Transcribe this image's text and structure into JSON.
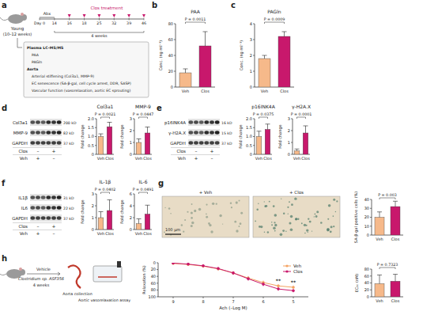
{
  "panel_letters": [
    "a",
    "b",
    "c",
    "d",
    "e",
    "f",
    "g",
    "h"
  ],
  "schematic_a": {
    "mouse": [
      "Young",
      "(10–12 weeks)"
    ],
    "abx": "Abx",
    "treatment": "Clos treatment",
    "days": [
      "Day 0",
      "14",
      "16",
      "18",
      "25",
      "32",
      "39",
      "46"
    ],
    "duration": "4 weeks",
    "readouts": [
      "Plasma LC–MS/MS",
      "PAA",
      "PAGln",
      "Aorta",
      "Arterial stiffening (Col3a1, MMP-9)",
      "EC senescence (SA-β-gal, cell cycle arrest, DDR, SASP)",
      "Vascular function (vasorelaxation, aortic EC sprouting)"
    ]
  },
  "blots": [
    {
      "rows": [
        {
          "label": "Col3a1",
          "kda": "200 kD"
        },
        {
          "label": "MMP-9",
          "kda": "82 kD"
        },
        {
          "label": "GAPDH",
          "kda": "37 kD"
        }
      ],
      "lanes": [
        {
          "label": "Clos",
          "signs": [
            "–",
            "+"
          ]
        },
        {
          "label": "Veh",
          "signs": [
            "+",
            "–"
          ]
        }
      ]
    },
    {
      "rows": [
        {
          "label": "p16INK4A",
          "kda": "16 kD"
        },
        {
          "label": "γ-H2A.X",
          "kda": "15 kD"
        },
        {
          "label": "GAPDH",
          "kda": "37 kD"
        }
      ],
      "lanes": [
        {
          "label": "Clos",
          "signs": [
            "–",
            "+"
          ]
        },
        {
          "label": "Veh",
          "signs": [
            "+",
            "–"
          ]
        }
      ]
    },
    {
      "rows": [
        {
          "label": "IL1β",
          "kda": "31 kD"
        },
        {
          "label": "IL6",
          "kda": "22 kD"
        },
        {
          "label": "GAPDH",
          "kda": "37 kD"
        }
      ],
      "lanes": [
        {
          "label": "Clos",
          "signs": [
            "–",
            "+"
          ]
        },
        {
          "label": "Veh",
          "signs": [
            "+",
            "–"
          ]
        }
      ]
    }
  ],
  "images_g": {
    "labels": [
      "+ Veh",
      "+ Clos"
    ],
    "scale": "100 μm"
  },
  "schematic_h": {
    "groups": [
      "Vehicle",
      "Clostridium sp. ASF356"
    ],
    "duration": "4 weeks",
    "steps": [
      "Aorta collection",
      "Aortic vasorelaxation assay"
    ]
  },
  "chart_data": [
    {
      "type": "bar",
      "title": "PAA",
      "y_label": "Conc. (ng ml⁻¹)",
      "categories": [
        "Veh",
        "Clos"
      ],
      "values": [
        18,
        52
      ],
      "errors": [
        5,
        18
      ],
      "colors": [
        "#f6b98a",
        "#c8186c"
      ],
      "ylim": [
        0,
        80
      ],
      "yticks": [
        0,
        20,
        40,
        60,
        80
      ],
      "annotation": "P = 0.0011"
    },
    {
      "type": "bar",
      "title": "PAGln",
      "y_label": "Conc. (ng ml⁻¹)",
      "categories": [
        "Veh",
        "Clos"
      ],
      "values": [
        1.8,
        3.2
      ],
      "errors": [
        0.2,
        0.3
      ],
      "colors": [
        "#f6b98a",
        "#c8186c"
      ],
      "ylim": [
        0,
        4
      ],
      "yticks": [
        0,
        1,
        2,
        3,
        4
      ],
      "annotation": "P = 0.0009"
    },
    {
      "type": "bar",
      "title": "Col3a1",
      "y_label": "Fold change",
      "categories": [
        "Veh",
        "Clos"
      ],
      "values": [
        1.0,
        1.55
      ],
      "errors": [
        0.15,
        0.25
      ],
      "colors": [
        "#f6b98a",
        "#c8186c"
      ],
      "ylim": [
        0,
        2
      ],
      "yticks": [
        0,
        0.5,
        {
          "value": 1,
          "label": "1.0"
        },
        1.5,
        {
          "value": 2,
          "label": "2.0"
        }
      ],
      "annotation": "P = 0.0021"
    },
    {
      "type": "bar",
      "title": "MMP-9",
      "y_label": "Fold change",
      "categories": [
        "Veh",
        "Clos"
      ],
      "values": [
        1.0,
        1.8
      ],
      "errors": [
        0.3,
        0.5
      ],
      "colors": [
        "#f6b98a",
        "#c8186c"
      ],
      "ylim": [
        0,
        3
      ],
      "yticks": [
        0,
        1,
        2,
        3
      ],
      "annotation": "P = 0.0447"
    },
    {
      "type": "bar",
      "title": "p16INK4A",
      "y_label": "Fold change",
      "categories": [
        "Veh",
        "Clos"
      ],
      "values": [
        1.0,
        1.4
      ],
      "errors": [
        0.3,
        0.3
      ],
      "colors": [
        "#f6b98a",
        "#c8186c"
      ],
      "ylim": [
        0,
        2
      ],
      "yticks": [
        0,
        0.5,
        {
          "value": 1,
          "label": "1.0"
        },
        1.5,
        {
          "value": 2,
          "label": "2.0"
        }
      ],
      "annotation": "P = 0.0375"
    },
    {
      "type": "bar",
      "title": "γ-H2A.X",
      "y_label": "Fold change",
      "categories": [
        "Veh",
        "Clos"
      ],
      "values": [
        0.3,
        1.8
      ],
      "errors": [
        0.15,
        0.6
      ],
      "colors": [
        "#f6b98a",
        "#c8186c"
      ],
      "ylim": [
        0,
        3
      ],
      "yticks": [
        0,
        1,
        2,
        3
      ],
      "annotation": "P = 0.0001"
    },
    {
      "type": "bar",
      "title": "IL-1β",
      "y_label": "Fold change",
      "categories": [
        "Veh",
        "Clos"
      ],
      "values": [
        1.0,
        1.6
      ],
      "errors": [
        0.5,
        0.9
      ],
      "colors": [
        "#f6b98a",
        "#c8186c"
      ],
      "ylim": [
        0,
        3
      ],
      "yticks": [
        0,
        1,
        2,
        3
      ],
      "annotation": "P = 0.0402"
    },
    {
      "type": "bar",
      "title": "IL-6",
      "y_label": "Fold change",
      "categories": [
        "Veh",
        "Clos"
      ],
      "values": [
        1.0,
        2.6
      ],
      "errors": [
        0.8,
        1.5
      ],
      "colors": [
        "#f6b98a",
        "#c8186c"
      ],
      "ylim": [
        0,
        6
      ],
      "yticks": [
        0,
        2,
        4,
        6
      ],
      "annotation": "P = 0.0491"
    },
    {
      "type": "bar",
      "y_label": "SA-β-gal positive cells (%)",
      "categories": [
        "Veh",
        "Clos"
      ],
      "values": [
        20,
        32
      ],
      "errors": [
        6,
        6
      ],
      "colors": [
        "#f6b98a",
        "#c8186c"
      ],
      "ylim": [
        0,
        40
      ],
      "yticks": [
        0,
        10,
        20,
        30,
        40
      ],
      "annotation": "P = 0.003"
    },
    {
      "type": "line",
      "x_label": "Ach (–Log M)",
      "y_label": "Relaxation (%)",
      "x": [
        9,
        8.5,
        8,
        7.5,
        7,
        6.5,
        6,
        5.5,
        5
      ],
      "xlim": [
        9.5,
        4.5
      ],
      "xticks": [
        9,
        8,
        7,
        6,
        5
      ],
      "ylim": [
        100,
        0
      ],
      "yticks": [
        0,
        20,
        40,
        60,
        80,
        100
      ],
      "legend": "upper right",
      "series": [
        {
          "name": "Veh",
          "color": "#f4a261",
          "marker": "circle",
          "values": [
            2,
            5,
            10,
            18,
            30,
            45,
            58,
            68,
            72
          ],
          "errors": [
            2,
            3,
            4,
            5,
            5,
            6,
            6,
            5,
            5
          ]
        },
        {
          "name": "Clos",
          "color": "#c8186c",
          "marker": "circle",
          "values": [
            1,
            4,
            9,
            17,
            30,
            47,
            63,
            77,
            82
          ],
          "errors": [
            2,
            3,
            4,
            5,
            5,
            6,
            6,
            5,
            5
          ]
        }
      ],
      "annotations": [
        {
          "text": "**",
          "x": 5.5
        },
        {
          "text": "**",
          "x": 5
        }
      ]
    },
    {
      "type": "bar",
      "y_label": "EC₅₀ (nM)",
      "categories": [
        "Veh",
        "Clos"
      ],
      "values": [
        38,
        45
      ],
      "errors": [
        25,
        20
      ],
      "colors": [
        "#f6b98a",
        "#c8186c"
      ],
      "ylim": [
        0,
        80
      ],
      "yticks": [
        0,
        20,
        40,
        60,
        80
      ],
      "annotation": "P = 0.7323"
    }
  ]
}
